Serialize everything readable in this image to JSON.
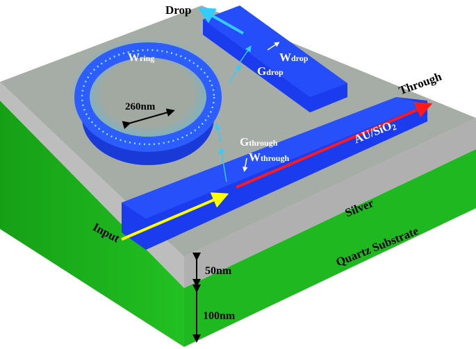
{
  "labels": {
    "drop": "Drop",
    "through": "Through",
    "input": "Input",
    "w_ring_main": "W",
    "w_ring_sub": "ring",
    "w_drop_main": "W",
    "w_drop_sub": "drop",
    "g_drop_main": "G",
    "g_drop_sub": "drop",
    "g_through_main": "G",
    "g_through_sub": "through",
    "w_through_main": "W",
    "w_through_sub": "through",
    "ring_radius": "260nm",
    "material": "AU/SiO",
    "material_sub": "2",
    "silver": "Silver",
    "substrate": "Quartz Substrate",
    "silver_thickness": "50nm",
    "substrate_thickness": "100nm"
  },
  "colors": {
    "silver_top": "#a8a8a8",
    "silver_side": "#b4b4b4",
    "substrate": "#1db51d",
    "waveguide": "#1a3cf0",
    "ring_glow": "#3cc8ff",
    "input_arrow": "#ffff00",
    "through_arrow": "#ff1a1a",
    "drop_arrow": "#33ccff"
  }
}
